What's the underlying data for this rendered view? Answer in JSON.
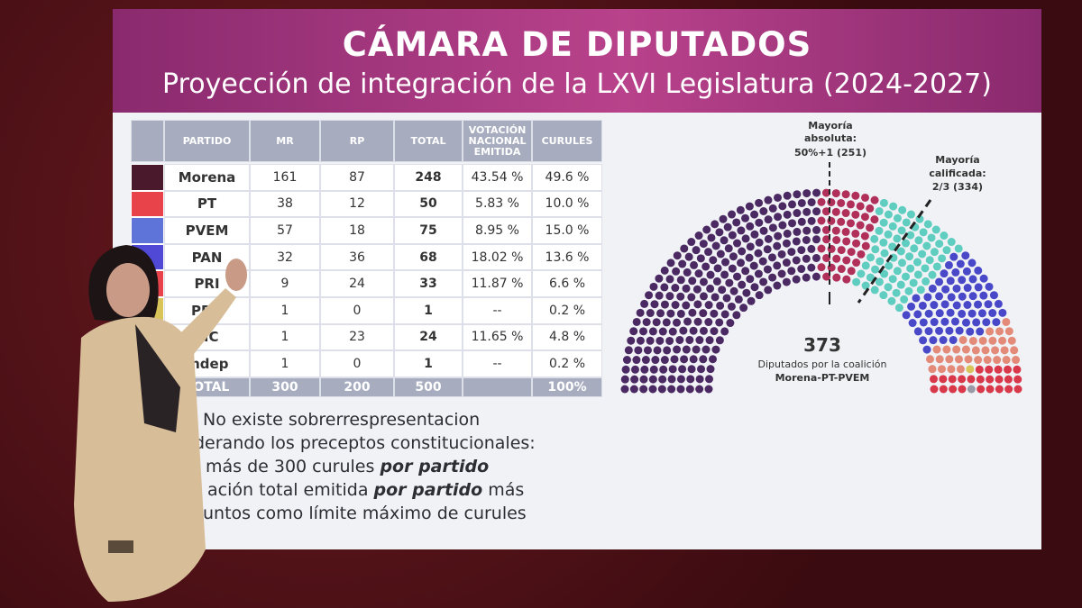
{
  "header": {
    "title": "CÁMARA DE DIPUTADOS",
    "subtitle": "Proyección de integración de la LXVI Legislatura (2024-2027)"
  },
  "table": {
    "columns": [
      "PARTIDO",
      "MR",
      "RP",
      "TOTAL",
      "VOTACIÓN NACIONAL EMITIDA",
      "CURULES"
    ],
    "rows": [
      [
        "Morena",
        161,
        87,
        248,
        "43.54 %",
        "49.6 %"
      ],
      [
        "PT",
        38,
        12,
        50,
        "5.83 %",
        "10.0 %"
      ],
      [
        "PVEM",
        57,
        18,
        75,
        "8.95 %",
        "15.0 %"
      ],
      [
        "PAN",
        32,
        36,
        68,
        "18.02 %",
        "13.6 %"
      ],
      [
        "PRI",
        9,
        24,
        33,
        "11.87 %",
        "6.6 %"
      ],
      [
        "PRD",
        1,
        0,
        1,
        "--",
        "0.2 %"
      ],
      [
        "MC",
        1,
        23,
        24,
        "11.65 %",
        "4.8 %"
      ],
      [
        "Indep",
        1,
        0,
        1,
        "--",
        "0.2 %"
      ]
    ],
    "swatches": [
      "#4a1a2c",
      "#e8434b",
      "#5f74d8",
      "#4f49d6",
      "#e8434b",
      "#d9c45a",
      "#e98a3a",
      "#9a9aa6"
    ],
    "total_row": [
      "TOTAL",
      300,
      200,
      500,
      null,
      "100%"
    ]
  },
  "chart": {
    "seat_colors": [
      "#4b2a63",
      "#b0305a",
      "#5fcdbf",
      "#4848c8",
      "#e38a78",
      "#d9c45a",
      "#d8384a",
      "#9a9aa6"
    ],
    "majority": [
      "Mayoría",
      "absoluta:",
      "50%+1 (251)"
    ],
    "qualified": [
      "Mayoría",
      "calificada:",
      "2/3 (334)"
    ],
    "coalition_total": "373",
    "coalition_label": "Diputados por la coalición",
    "coalition_name": "Morena-PT-PVEM"
  },
  "notes": [
    [
      {
        "text": "No existe sobrerrespresentacion"
      }
    ],
    [
      {
        "text": "derando los preceptos constitucionales:"
      }
    ],
    [
      {
        "text": "más de 300 curules "
      },
      {
        "text": "por partido",
        "bold": true
      }
    ],
    [
      {
        "text": "ación total emitida "
      },
      {
        "text": "por partido",
        "bold": true
      },
      {
        "text": " más"
      }
    ],
    [
      {
        "text": "untos como límite máximo de curules"
      }
    ]
  ]
}
